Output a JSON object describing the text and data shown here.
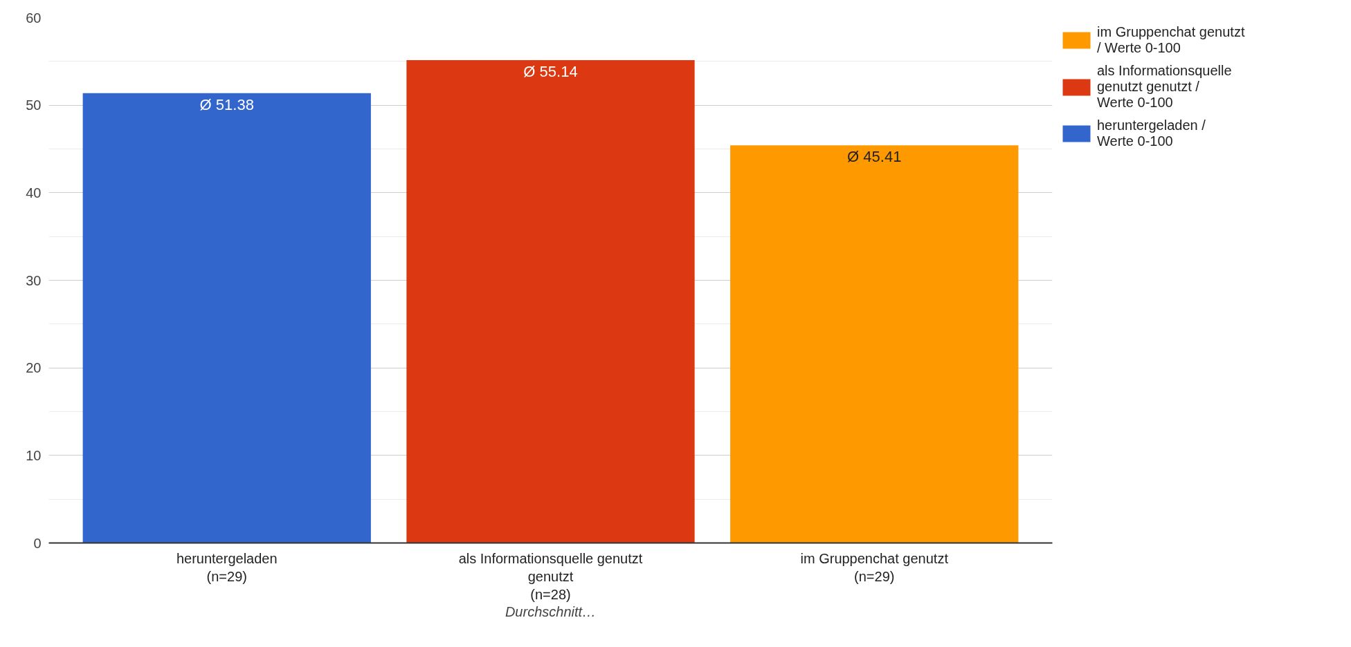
{
  "chart_data": {
    "type": "bar",
    "stacked": true,
    "xlabel": "Durchschnitt…",
    "categories": [
      "heruntergeladen\n(n=29)",
      "als Informationsquelle genutzt\ngenutzt\n(n=28)",
      "im Gruppenchat genutzt\n(n=29)"
    ],
    "series": [
      {
        "name": "heruntergeladen / Werte 0-100",
        "color": "#3366cc",
        "values": [
          51.38,
          0,
          0
        ],
        "value_labels": [
          "Ø 51.38",
          null,
          null
        ]
      },
      {
        "name": "als Informationsquelle genutzt genutzt / Werte 0-100",
        "color": "#dc3912",
        "values": [
          0,
          55.14,
          0
        ],
        "value_labels": [
          null,
          "Ø 55.14",
          null
        ]
      },
      {
        "name": "im Gruppenchat genutzt / Werte 0-100",
        "color": "#ff9900",
        "values": [
          0,
          0,
          45.41
        ],
        "value_labels": [
          null,
          null,
          "Ø 45.41"
        ]
      }
    ],
    "ylim": [
      0,
      60
    ],
    "yticks": [
      0,
      10,
      20,
      30,
      40,
      50,
      60
    ],
    "grid": "y",
    "legend": "right"
  }
}
